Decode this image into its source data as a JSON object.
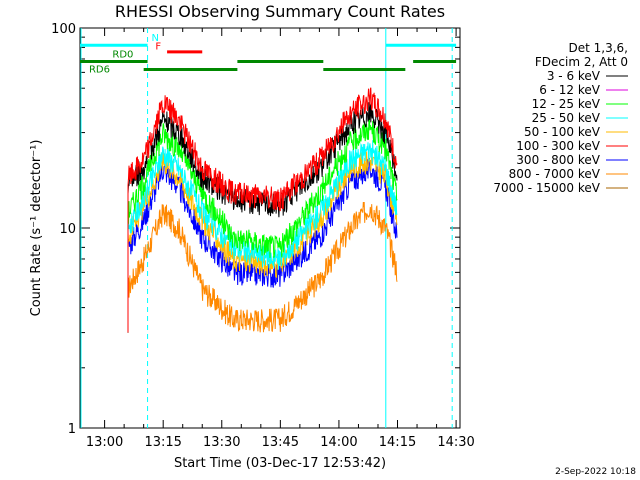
{
  "chart_data": {
    "type": "line",
    "title": "RHESSI Observing Summary Count Rates",
    "xlabel": "Start Time (03-Dec-17 12:53:42)",
    "ylabel": "Count Rate (s⁻¹ detector⁻¹)",
    "y_scale": "log",
    "ylim": [
      1,
      100
    ],
    "xlim": [
      "12:53:42",
      "14:31:00"
    ],
    "x_ticks": [
      "13:00",
      "13:15",
      "13:30",
      "13:45",
      "14:00",
      "14:15",
      "14:30"
    ],
    "y_ticks": [
      "1",
      "10",
      "100"
    ],
    "legend_header": [
      "Det 1,3,6,",
      "FDecim 2, Att 0"
    ],
    "legend_position": "right",
    "series": [
      {
        "name": "3 - 6 keV",
        "color": "#000000",
        "points": [
          [
            "13:06",
            17
          ],
          [
            "13:10",
            20
          ],
          [
            "13:15",
            35
          ],
          [
            "13:19",
            30
          ],
          [
            "13:25",
            18
          ],
          [
            "13:33",
            14
          ],
          [
            "13:45",
            13
          ],
          [
            "13:55",
            20
          ],
          [
            "14:03",
            33
          ],
          [
            "14:08",
            38
          ],
          [
            "14:12",
            30
          ],
          [
            "14:15",
            18
          ]
        ]
      },
      {
        "name": "6 - 12 keV",
        "color": "#dd00dd",
        "points": []
      },
      {
        "name": "12 - 25 keV",
        "color": "#00ff00",
        "points": [
          [
            "13:06",
            12
          ],
          [
            "13:10",
            17
          ],
          [
            "13:15",
            30
          ],
          [
            "13:19",
            25
          ],
          [
            "13:25",
            15
          ],
          [
            "13:33",
            9
          ],
          [
            "13:45",
            8
          ],
          [
            "13:55",
            15
          ],
          [
            "14:03",
            27
          ],
          [
            "14:08",
            32
          ],
          [
            "14:12",
            25
          ],
          [
            "14:15",
            14
          ]
        ]
      },
      {
        "name": "25 - 50 keV",
        "color": "#00ffff",
        "points": [
          [
            "13:06",
            10
          ],
          [
            "13:10",
            14
          ],
          [
            "13:15",
            24
          ],
          [
            "13:19",
            20
          ],
          [
            "13:25",
            12
          ],
          [
            "13:33",
            8
          ],
          [
            "13:45",
            7
          ],
          [
            "13:55",
            12
          ],
          [
            "14:03",
            22
          ],
          [
            "14:08",
            25
          ],
          [
            "14:12",
            20
          ],
          [
            "14:15",
            12
          ]
        ]
      },
      {
        "name": "50 - 100 keV",
        "color": "#ffbb00",
        "points": [
          [
            "13:06",
            9
          ],
          [
            "13:10",
            13
          ],
          [
            "13:15",
            22
          ],
          [
            "13:19",
            18
          ],
          [
            "13:25",
            11
          ],
          [
            "13:33",
            7
          ],
          [
            "13:45",
            6.5
          ],
          [
            "13:55",
            11
          ],
          [
            "14:03",
            20
          ],
          [
            "14:08",
            22
          ],
          [
            "14:12",
            18
          ],
          [
            "14:15",
            11
          ]
        ]
      },
      {
        "name": "100 - 300 keV",
        "color": "#ff0000",
        "points": [
          [
            "13:06",
            18
          ],
          [
            "13:10",
            22
          ],
          [
            "13:15",
            42
          ],
          [
            "13:19",
            35
          ],
          [
            "13:25",
            20
          ],
          [
            "13:33",
            15
          ],
          [
            "13:45",
            14
          ],
          [
            "13:55",
            22
          ],
          [
            "14:03",
            38
          ],
          [
            "14:08",
            45
          ],
          [
            "14:12",
            35
          ],
          [
            "14:15",
            20
          ]
        ]
      },
      {
        "name": "300 - 800 keV",
        "color": "#0000ff",
        "points": [
          [
            "13:06",
            8
          ],
          [
            "13:10",
            11
          ],
          [
            "13:15",
            20
          ],
          [
            "13:19",
            16
          ],
          [
            "13:25",
            9
          ],
          [
            "13:33",
            6
          ],
          [
            "13:45",
            5.8
          ],
          [
            "13:55",
            9
          ],
          [
            "14:03",
            17
          ],
          [
            "14:08",
            20
          ],
          [
            "14:12",
            16
          ],
          [
            "14:15",
            9
          ]
        ]
      },
      {
        "name": "800 - 7000 keV",
        "color": "#ff8800",
        "points": [
          [
            "13:06",
            5
          ],
          [
            "13:10",
            7
          ],
          [
            "13:15",
            12
          ],
          [
            "13:19",
            10
          ],
          [
            "13:25",
            5
          ],
          [
            "13:33",
            3.5
          ],
          [
            "13:45",
            3.5
          ],
          [
            "13:55",
            5.5
          ],
          [
            "14:03",
            10
          ],
          [
            "14:08",
            13
          ],
          [
            "14:12",
            10
          ],
          [
            "14:15",
            6
          ]
        ]
      },
      {
        "name": "7000 - 15000 keV",
        "color": "#aa6600",
        "points": []
      }
    ],
    "flag_labels": [
      "N",
      "F",
      "RD0",
      "RD6"
    ],
    "flag_bars": [
      {
        "label": "N",
        "color": "#00ffff",
        "y": 82,
        "segments": [
          [
            "12:53:42",
            "13:11"
          ],
          [
            "14:12",
            "14:30"
          ]
        ]
      },
      {
        "label": "F",
        "color": "#ff0000",
        "y": 76,
        "segments": [
          [
            "13:16",
            "13:25"
          ]
        ]
      },
      {
        "label": "RD0",
        "color": "#008800",
        "y": 68,
        "segments": [
          [
            "12:53:42",
            "13:11"
          ],
          [
            "13:34",
            "13:56"
          ],
          [
            "14:19",
            "14:30"
          ]
        ]
      },
      {
        "label": "RD6",
        "color": "#008800",
        "y": 62,
        "segments": [
          [
            "13:10",
            "13:34"
          ],
          [
            "13:56",
            "14:17"
          ]
        ]
      }
    ],
    "vlines": [
      {
        "x": "12:53:42",
        "color": "#00ffff",
        "style": "solid"
      },
      {
        "x": "13:11",
        "color": "#00ffff",
        "style": "dashed"
      },
      {
        "x": "14:12",
        "color": "#00ffff",
        "style": "solid"
      },
      {
        "x": "14:29",
        "color": "#00ffff",
        "style": "dashed"
      }
    ],
    "date_stamp": "2-Sep-2022 10:18"
  }
}
